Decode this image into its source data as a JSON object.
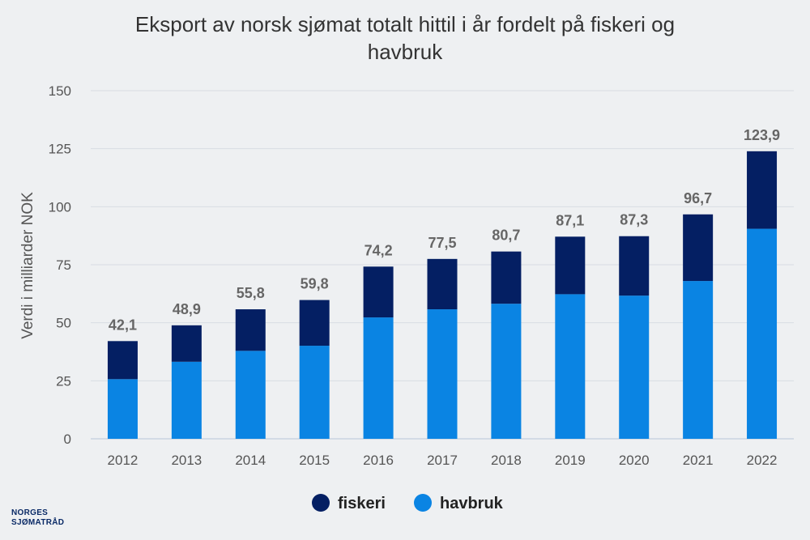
{
  "title_lines": [
    "Eksport av norsk sjømat totalt hittil i år fordelt på fiskeri og",
    "havbruk"
  ],
  "logo_lines": [
    "NORGES",
    "SJØMATRÅD"
  ],
  "chart_data": {
    "type": "bar",
    "stacked": true,
    "title": "Eksport av norsk sjømat totalt hittil i år fordelt på fiskeri og havbruk",
    "xlabel": "",
    "ylabel": "Verdi i milliarder NOK",
    "ylim": [
      0,
      150
    ],
    "yticks": [
      0,
      25,
      50,
      75,
      100,
      125,
      150
    ],
    "categories": [
      "2012",
      "2013",
      "2014",
      "2015",
      "2016",
      "2017",
      "2018",
      "2019",
      "2020",
      "2021",
      "2022"
    ],
    "totals_labels": [
      "42,1",
      "48,9",
      "55,8",
      "59,8",
      "74,2",
      "77,5",
      "80,7",
      "87,1",
      "87,3",
      "96,7",
      "123,9"
    ],
    "series": [
      {
        "name": "havbruk",
        "color": "#0a84e3",
        "values": [
          25.7,
          33.2,
          37.9,
          40.1,
          52.3,
          55.8,
          58.2,
          62.3,
          61.7,
          68.0,
          90.5
        ]
      },
      {
        "name": "fiskeri",
        "color": "#041f63",
        "values": [
          16.4,
          15.7,
          17.9,
          19.7,
          21.9,
          21.7,
          22.5,
          24.8,
          25.6,
          28.7,
          33.4
        ]
      }
    ],
    "legend_order": [
      "fiskeri",
      "havbruk"
    ],
    "legend_position": "bottom",
    "grid": true
  }
}
